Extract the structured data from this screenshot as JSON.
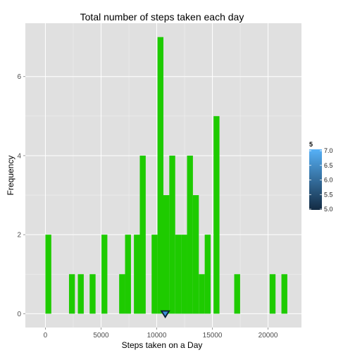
{
  "chart_data": {
    "type": "bar",
    "title": "Total number of steps taken each day",
    "xlabel": "Steps taken on a Day",
    "ylabel": "Frequency",
    "xlim": [
      -1800,
      23000
    ],
    "ylim": [
      -0.35,
      7.35
    ],
    "xticks": [
      0,
      5000,
      10000,
      15000,
      20000
    ],
    "yticks": [
      0,
      2,
      4,
      6
    ],
    "xtick_labels": [
      "0",
      "5000",
      "10000",
      "15000",
      "20000"
    ],
    "ytick_labels": [
      "0",
      "2",
      "4",
      "6"
    ],
    "binwidth": 530,
    "bar_color": "#1ecb00",
    "panel_color": "#e0e0e0",
    "grid": true,
    "bins": [
      {
        "start": 0,
        "count": 2
      },
      {
        "start": 2120,
        "count": 1
      },
      {
        "start": 2915,
        "count": 1
      },
      {
        "start": 3975,
        "count": 1
      },
      {
        "start": 5035,
        "count": 2
      },
      {
        "start": 6625,
        "count": 1
      },
      {
        "start": 7155,
        "count": 2
      },
      {
        "start": 7950,
        "count": 2
      },
      {
        "start": 8480,
        "count": 4
      },
      {
        "start": 9540,
        "count": 2
      },
      {
        "start": 10070,
        "count": 7
      },
      {
        "start": 10600,
        "count": 3
      },
      {
        "start": 11130,
        "count": 4
      },
      {
        "start": 11660,
        "count": 2
      },
      {
        "start": 12190,
        "count": 2
      },
      {
        "start": 12720,
        "count": 4
      },
      {
        "start": 13250,
        "count": 3
      },
      {
        "start": 13780,
        "count": 1
      },
      {
        "start": 14310,
        "count": 2
      },
      {
        "start": 15105,
        "count": 5
      },
      {
        "start": 16960,
        "count": 1
      },
      {
        "start": 20140,
        "count": 1
      },
      {
        "start": 21200,
        "count": 1
      }
    ],
    "marker": {
      "x": 10766,
      "y": 0,
      "fill": "#3b8fd9",
      "stroke": "#0b1e33"
    },
    "legend": {
      "title": "5",
      "placement": "right",
      "labels": [
        "7.0",
        "6.5",
        "6.0",
        "5.5",
        "5.0"
      ],
      "gradient_top": "#56b1f7",
      "gradient_bottom": "#132b43"
    }
  }
}
